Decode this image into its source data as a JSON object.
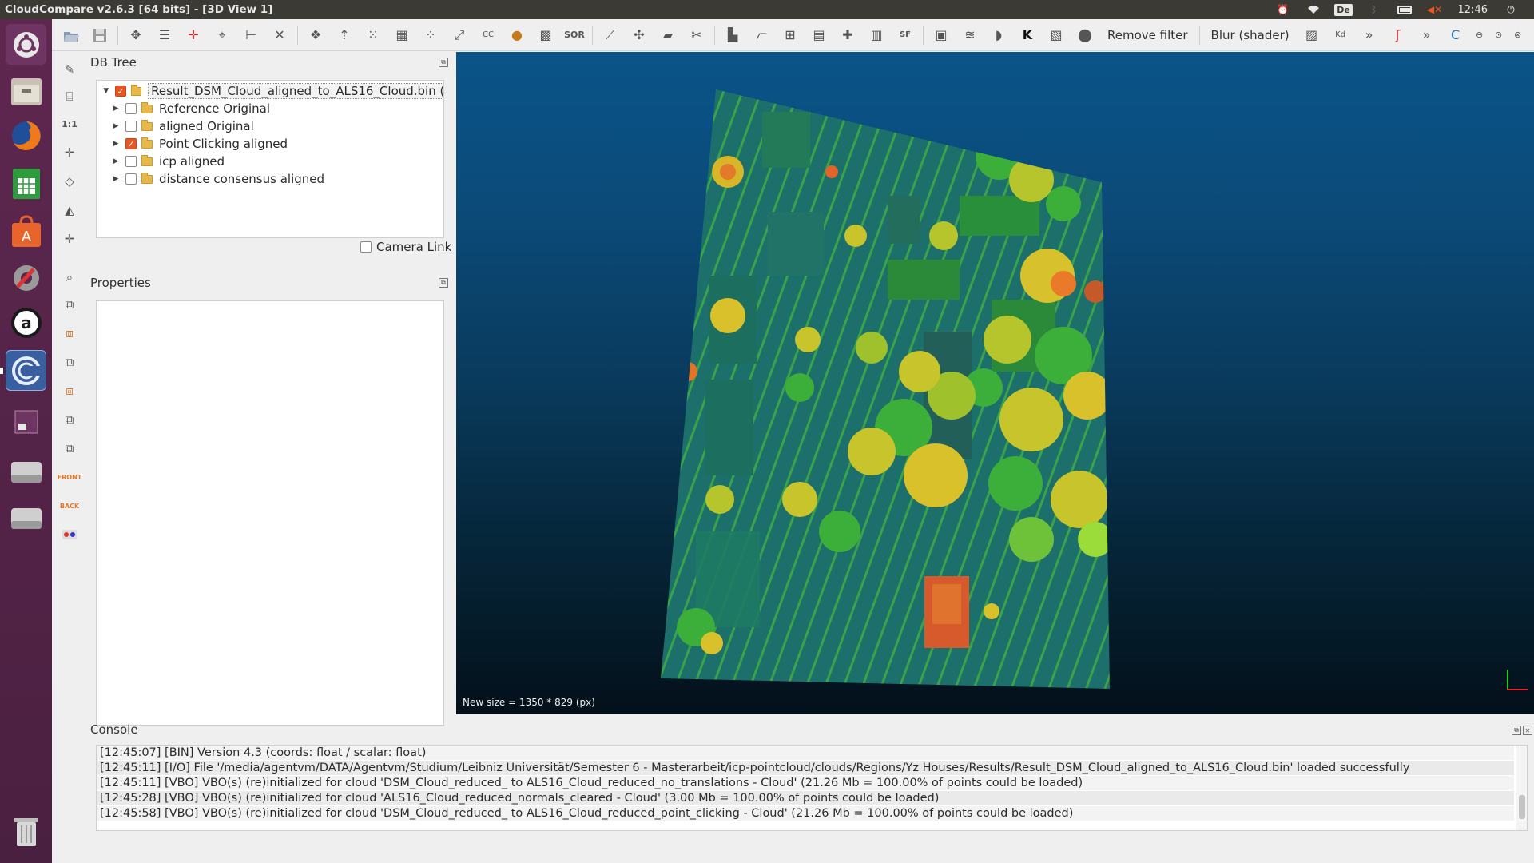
{
  "window": {
    "title": "CloudCompare v2.6.3 [64 bits] - [3D View 1]"
  },
  "tray": {
    "keyboard": "De",
    "clock": "12:46"
  },
  "toolbar": {
    "remove_filter_label": "Remove filter",
    "blur_label": "Blur (shader)"
  },
  "dbtree": {
    "title": "DB Tree",
    "root": {
      "label": "Result_DSM_Cloud_aligned_to_ALS16_Cloud.bin (...",
      "checked": true
    },
    "items": [
      {
        "label": "Reference Original",
        "checked": false
      },
      {
        "label": "aligned Original",
        "checked": false
      },
      {
        "label": "Point Clicking aligned",
        "checked": true
      },
      {
        "label": "icp aligned",
        "checked": false
      },
      {
        "label": "distance consensus aligned",
        "checked": false
      }
    ],
    "camera_link_label": "Camera Link"
  },
  "properties": {
    "title": "Properties"
  },
  "view3d": {
    "status": "New size = 1350 * 829 (px)"
  },
  "console": {
    "title": "Console",
    "lines": [
      "[12:45:07] [BIN] Version 4.3 (coords: float / scalar: float)",
      "[12:45:11] [I/O] File '/media/agentvm/DATA/Agentvm/Studium/Leibniz Universität/Semester 6 - Masterarbeit/icp-pointcloud/clouds/Regions/Yz Houses/Results/Result_DSM_Cloud_aligned_to_ALS16_Cloud.bin' loaded successfully",
      "[12:45:11] [VBO] VBO(s) (re)initialized for cloud 'DSM_Cloud_reduced_ to ALS16_Cloud_reduced_no_translations - Cloud' (21.26 Mb = 100.00% of points could be loaded)",
      "[12:45:28] [VBO] VBO(s) (re)initialized for cloud 'ALS16_Cloud_reduced_normals_cleared - Cloud' (3.00 Mb = 100.00% of points could be loaded)",
      "[12:45:58] [VBO] VBO(s) (re)initialized for cloud 'DSM_Cloud_reduced_ to ALS16_Cloud_reduced_point_clicking - Cloud' (21.26 Mb = 100.00% of points could be loaded)"
    ]
  },
  "colors": {
    "accent": "#e95420",
    "launcher": "#5e2750",
    "view_bg_top": "#0a5489",
    "view_bg_bottom": "#03101a"
  }
}
